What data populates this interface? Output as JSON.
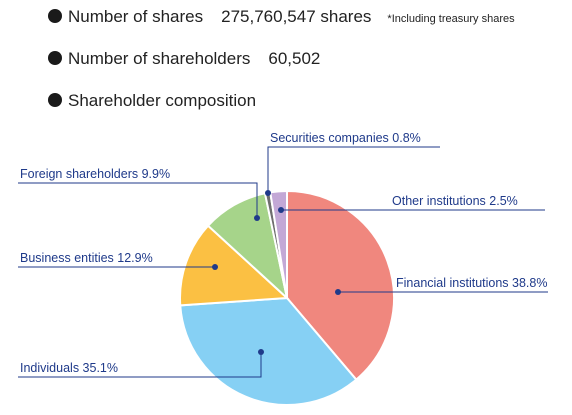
{
  "info": {
    "shares": {
      "label": "Number of shares",
      "value": "275,760,547 shares",
      "note": "*Including treasury shares"
    },
    "shareholders": {
      "label": "Number of shareholders",
      "value": "60,502"
    },
    "composition": {
      "label": "Shareholder composition"
    }
  },
  "colors": {
    "label_text": "#1f3a8a",
    "leader_line": "#1f3a8a",
    "bullet": "#1a1a1a"
  },
  "chart_data": {
    "type": "pie",
    "start": "12 o'clock, clockwise",
    "slices": [
      {
        "name": "Financial institutions",
        "value": 38.8,
        "label": "Financial institutions 38.8%",
        "color": "#f0877e"
      },
      {
        "name": "Individuals",
        "value": 35.1,
        "label": "Individuals 35.1%",
        "color": "#86d0f4"
      },
      {
        "name": "Business entities",
        "value": 12.9,
        "label": "Business entities 12.9%",
        "color": "#fbc043"
      },
      {
        "name": "Foreign shareholders",
        "value": 9.9,
        "label": "Foreign shareholders 9.9%",
        "color": "#a6d48a"
      },
      {
        "name": "Securities companies",
        "value": 0.8,
        "label": "Securities companies 0.8%",
        "color": "#6e6e6e"
      },
      {
        "name": "Other institutions",
        "value": 2.5,
        "label": "Other institutions 2.5%",
        "color": "#c3a8d6"
      }
    ]
  }
}
